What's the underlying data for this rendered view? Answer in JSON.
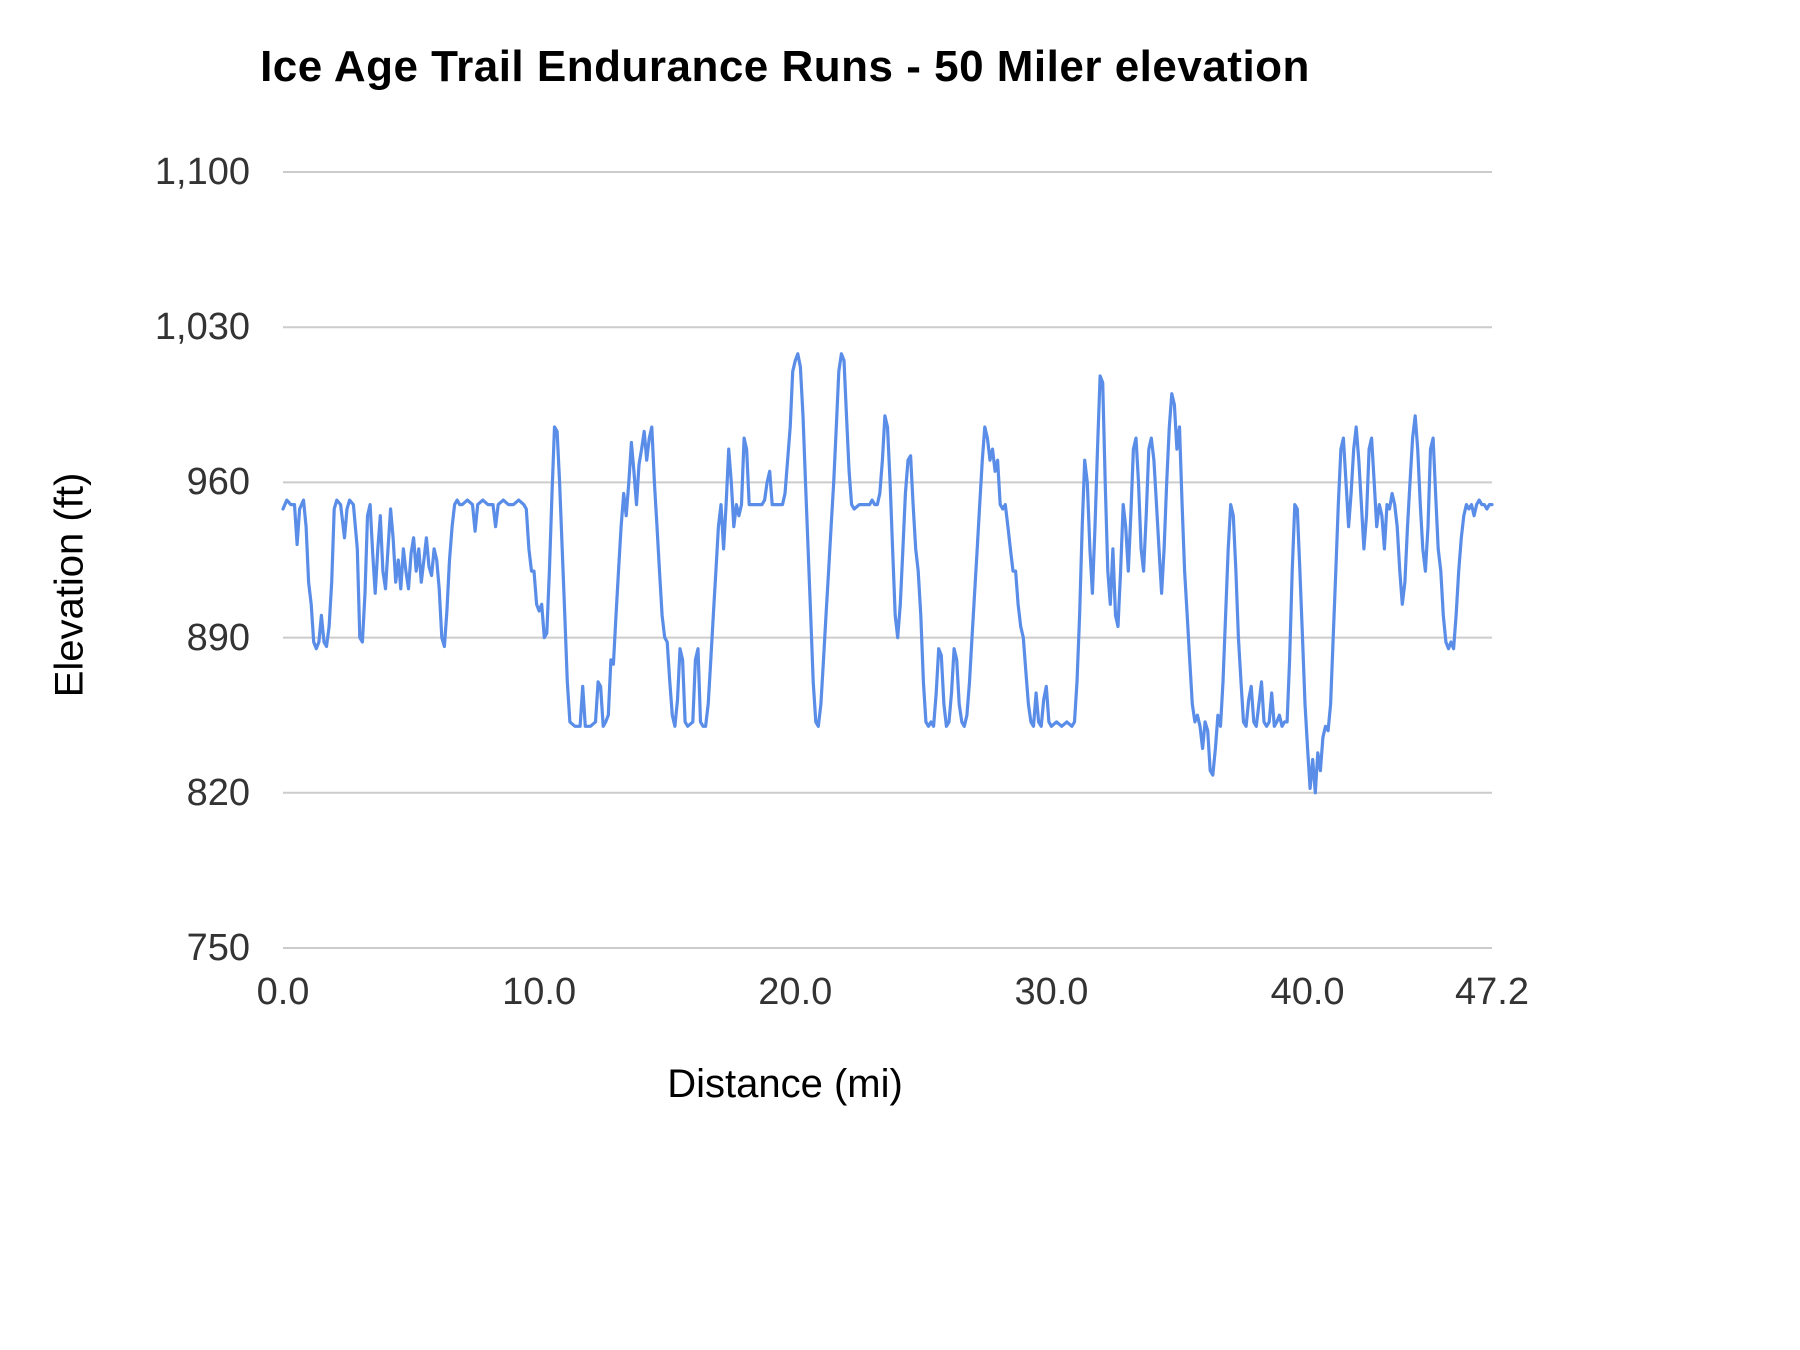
{
  "page": {
    "background": "#ffffff"
  },
  "chart_data": {
    "type": "line",
    "title": "Ice Age Trail Endurance Runs - 50 Miler elevation",
    "xlabel": "Distance (mi)",
    "ylabel": "Elevation (ft)",
    "xlim": [
      0,
      47.2
    ],
    "ylim": [
      750,
      1100
    ],
    "x_ticks": {
      "values": [
        0,
        10,
        20,
        30,
        40,
        47.2
      ],
      "labels": [
        "0.0",
        "10.0",
        "20.0",
        "30.0",
        "40.0",
        "47.2"
      ]
    },
    "y_ticks": {
      "values": [
        750,
        820,
        890,
        960,
        1030,
        1100
      ],
      "labels": [
        "750",
        "820",
        "890",
        "960",
        "1,030",
        "1,100"
      ]
    },
    "grid": "horizontal",
    "legend": "none",
    "line_color": "#5a8de8",
    "grid_color": "#cccccc",
    "text_color": "#333333",
    "series_name": "Elevation",
    "points": [
      [
        0,
        948
      ],
      [
        0.15,
        952
      ],
      [
        0.3,
        950
      ],
      [
        0.45,
        950
      ],
      [
        0.55,
        932
      ],
      [
        0.65,
        948
      ],
      [
        0.8,
        952
      ],
      [
        0.9,
        940
      ],
      [
        1.0,
        915
      ],
      [
        1.1,
        905
      ],
      [
        1.2,
        888
      ],
      [
        1.3,
        885
      ],
      [
        1.4,
        888
      ],
      [
        1.5,
        900
      ],
      [
        1.6,
        888
      ],
      [
        1.7,
        886
      ],
      [
        1.8,
        895
      ],
      [
        1.9,
        915
      ],
      [
        2.0,
        948
      ],
      [
        2.1,
        952
      ],
      [
        2.25,
        950
      ],
      [
        2.4,
        935
      ],
      [
        2.5,
        948
      ],
      [
        2.6,
        952
      ],
      [
        2.75,
        950
      ],
      [
        2.9,
        930
      ],
      [
        3.0,
        890
      ],
      [
        3.1,
        888
      ],
      [
        3.2,
        910
      ],
      [
        3.3,
        945
      ],
      [
        3.4,
        950
      ],
      [
        3.5,
        928
      ],
      [
        3.6,
        910
      ],
      [
        3.7,
        930
      ],
      [
        3.8,
        945
      ],
      [
        3.9,
        920
      ],
      [
        4.0,
        912
      ],
      [
        4.1,
        930
      ],
      [
        4.2,
        948
      ],
      [
        4.3,
        935
      ],
      [
        4.4,
        915
      ],
      [
        4.5,
        925
      ],
      [
        4.6,
        912
      ],
      [
        4.7,
        930
      ],
      [
        4.8,
        920
      ],
      [
        4.9,
        912
      ],
      [
        5.0,
        928
      ],
      [
        5.1,
        935
      ],
      [
        5.2,
        920
      ],
      [
        5.3,
        930
      ],
      [
        5.4,
        915
      ],
      [
        5.5,
        925
      ],
      [
        5.6,
        935
      ],
      [
        5.7,
        922
      ],
      [
        5.8,
        918
      ],
      [
        5.9,
        930
      ],
      [
        6.0,
        925
      ],
      [
        6.1,
        912
      ],
      [
        6.2,
        890
      ],
      [
        6.3,
        886
      ],
      [
        6.4,
        902
      ],
      [
        6.5,
        925
      ],
      [
        6.6,
        940
      ],
      [
        6.7,
        950
      ],
      [
        6.8,
        952
      ],
      [
        6.9,
        950
      ],
      [
        7.0,
        950
      ],
      [
        7.2,
        952
      ],
      [
        7.4,
        950
      ],
      [
        7.5,
        938
      ],
      [
        7.6,
        950
      ],
      [
        7.8,
        952
      ],
      [
        8.0,
        950
      ],
      [
        8.2,
        950
      ],
      [
        8.3,
        940
      ],
      [
        8.4,
        950
      ],
      [
        8.6,
        952
      ],
      [
        8.8,
        950
      ],
      [
        9.0,
        950
      ],
      [
        9.2,
        952
      ],
      [
        9.4,
        950
      ],
      [
        9.5,
        948
      ],
      [
        9.6,
        930
      ],
      [
        9.7,
        920
      ],
      [
        9.8,
        920
      ],
      [
        9.9,
        905
      ],
      [
        10.0,
        902
      ],
      [
        10.1,
        905
      ],
      [
        10.2,
        890
      ],
      [
        10.3,
        892
      ],
      [
        10.4,
        920
      ],
      [
        10.5,
        955
      ],
      [
        10.6,
        985
      ],
      [
        10.7,
        983
      ],
      [
        10.8,
        960
      ],
      [
        10.9,
        930
      ],
      [
        11.0,
        900
      ],
      [
        11.1,
        870
      ],
      [
        11.2,
        852
      ],
      [
        11.4,
        850
      ],
      [
        11.6,
        850
      ],
      [
        11.7,
        868
      ],
      [
        11.8,
        850
      ],
      [
        12.0,
        850
      ],
      [
        12.2,
        852
      ],
      [
        12.3,
        870
      ],
      [
        12.4,
        868
      ],
      [
        12.5,
        850
      ],
      [
        12.6,
        852
      ],
      [
        12.7,
        855
      ],
      [
        12.8,
        880
      ],
      [
        12.9,
        878
      ],
      [
        13.0,
        900
      ],
      [
        13.1,
        920
      ],
      [
        13.2,
        940
      ],
      [
        13.3,
        955
      ],
      [
        13.4,
        945
      ],
      [
        13.5,
        960
      ],
      [
        13.6,
        978
      ],
      [
        13.7,
        965
      ],
      [
        13.8,
        950
      ],
      [
        13.9,
        968
      ],
      [
        14.0,
        975
      ],
      [
        14.1,
        983
      ],
      [
        14.2,
        970
      ],
      [
        14.3,
        980
      ],
      [
        14.4,
        985
      ],
      [
        14.5,
        960
      ],
      [
        14.6,
        940
      ],
      [
        14.7,
        920
      ],
      [
        14.8,
        900
      ],
      [
        14.9,
        890
      ],
      [
        15.0,
        888
      ],
      [
        15.1,
        870
      ],
      [
        15.2,
        855
      ],
      [
        15.3,
        850
      ],
      [
        15.4,
        862
      ],
      [
        15.5,
        885
      ],
      [
        15.6,
        880
      ],
      [
        15.7,
        852
      ],
      [
        15.8,
        850
      ],
      [
        16.0,
        852
      ],
      [
        16.1,
        880
      ],
      [
        16.2,
        885
      ],
      [
        16.3,
        852
      ],
      [
        16.4,
        850
      ],
      [
        16.5,
        850
      ],
      [
        16.6,
        860
      ],
      [
        16.7,
        880
      ],
      [
        16.8,
        900
      ],
      [
        16.9,
        920
      ],
      [
        17.0,
        940
      ],
      [
        17.1,
        950
      ],
      [
        17.2,
        930
      ],
      [
        17.3,
        950
      ],
      [
        17.4,
        975
      ],
      [
        17.5,
        960
      ],
      [
        17.6,
        940
      ],
      [
        17.7,
        950
      ],
      [
        17.8,
        945
      ],
      [
        17.9,
        950
      ],
      [
        18.0,
        980
      ],
      [
        18.1,
        975
      ],
      [
        18.2,
        950
      ],
      [
        18.3,
        950
      ],
      [
        18.5,
        950
      ],
      [
        18.7,
        950
      ],
      [
        18.8,
        952
      ],
      [
        18.9,
        960
      ],
      [
        19.0,
        965
      ],
      [
        19.1,
        950
      ],
      [
        19.3,
        950
      ],
      [
        19.5,
        950
      ],
      [
        19.6,
        955
      ],
      [
        19.7,
        970
      ],
      [
        19.8,
        985
      ],
      [
        19.9,
        1010
      ],
      [
        20.0,
        1015
      ],
      [
        20.1,
        1018
      ],
      [
        20.2,
        1012
      ],
      [
        20.3,
        990
      ],
      [
        20.4,
        960
      ],
      [
        20.5,
        930
      ],
      [
        20.6,
        900
      ],
      [
        20.7,
        870
      ],
      [
        20.8,
        852
      ],
      [
        20.9,
        850
      ],
      [
        21.0,
        860
      ],
      [
        21.1,
        880
      ],
      [
        21.2,
        900
      ],
      [
        21.3,
        920
      ],
      [
        21.4,
        940
      ],
      [
        21.5,
        960
      ],
      [
        21.6,
        985
      ],
      [
        21.7,
        1010
      ],
      [
        21.8,
        1018
      ],
      [
        21.9,
        1015
      ],
      [
        22.0,
        990
      ],
      [
        22.1,
        965
      ],
      [
        22.2,
        950
      ],
      [
        22.3,
        948
      ],
      [
        22.5,
        950
      ],
      [
        22.7,
        950
      ],
      [
        22.9,
        950
      ],
      [
        23.0,
        952
      ],
      [
        23.1,
        950
      ],
      [
        23.2,
        950
      ],
      [
        23.3,
        955
      ],
      [
        23.4,
        970
      ],
      [
        23.5,
        990
      ],
      [
        23.6,
        985
      ],
      [
        23.7,
        960
      ],
      [
        23.8,
        930
      ],
      [
        23.9,
        900
      ],
      [
        24.0,
        890
      ],
      [
        24.1,
        905
      ],
      [
        24.2,
        930
      ],
      [
        24.3,
        955
      ],
      [
        24.4,
        970
      ],
      [
        24.5,
        972
      ],
      [
        24.6,
        950
      ],
      [
        24.7,
        930
      ],
      [
        24.8,
        920
      ],
      [
        24.9,
        900
      ],
      [
        25.0,
        870
      ],
      [
        25.1,
        852
      ],
      [
        25.2,
        850
      ],
      [
        25.3,
        852
      ],
      [
        25.4,
        850
      ],
      [
        25.5,
        865
      ],
      [
        25.6,
        885
      ],
      [
        25.7,
        882
      ],
      [
        25.8,
        860
      ],
      [
        25.9,
        850
      ],
      [
        26.0,
        852
      ],
      [
        26.1,
        865
      ],
      [
        26.2,
        885
      ],
      [
        26.3,
        880
      ],
      [
        26.4,
        860
      ],
      [
        26.5,
        852
      ],
      [
        26.6,
        850
      ],
      [
        26.7,
        855
      ],
      [
        26.8,
        870
      ],
      [
        26.9,
        890
      ],
      [
        27.0,
        910
      ],
      [
        27.1,
        930
      ],
      [
        27.2,
        950
      ],
      [
        27.3,
        970
      ],
      [
        27.4,
        985
      ],
      [
        27.5,
        980
      ],
      [
        27.6,
        970
      ],
      [
        27.7,
        975
      ],
      [
        27.8,
        965
      ],
      [
        27.9,
        970
      ],
      [
        28.0,
        950
      ],
      [
        28.1,
        948
      ],
      [
        28.2,
        950
      ],
      [
        28.3,
        940
      ],
      [
        28.4,
        930
      ],
      [
        28.5,
        920
      ],
      [
        28.6,
        920
      ],
      [
        28.7,
        905
      ],
      [
        28.8,
        895
      ],
      [
        28.9,
        890
      ],
      [
        29.0,
        875
      ],
      [
        29.1,
        860
      ],
      [
        29.2,
        852
      ],
      [
        29.3,
        850
      ],
      [
        29.4,
        865
      ],
      [
        29.5,
        852
      ],
      [
        29.6,
        850
      ],
      [
        29.7,
        862
      ],
      [
        29.8,
        868
      ],
      [
        29.9,
        852
      ],
      [
        30.0,
        850
      ],
      [
        30.2,
        852
      ],
      [
        30.4,
        850
      ],
      [
        30.6,
        852
      ],
      [
        30.8,
        850
      ],
      [
        30.9,
        852
      ],
      [
        31.0,
        870
      ],
      [
        31.1,
        900
      ],
      [
        31.2,
        940
      ],
      [
        31.3,
        970
      ],
      [
        31.4,
        960
      ],
      [
        31.5,
        930
      ],
      [
        31.6,
        910
      ],
      [
        31.7,
        940
      ],
      [
        31.8,
        975
      ],
      [
        31.9,
        1008
      ],
      [
        32.0,
        1005
      ],
      [
        32.1,
        960
      ],
      [
        32.2,
        920
      ],
      [
        32.3,
        905
      ],
      [
        32.4,
        930
      ],
      [
        32.5,
        900
      ],
      [
        32.6,
        895
      ],
      [
        32.7,
        920
      ],
      [
        32.8,
        950
      ],
      [
        32.9,
        940
      ],
      [
        33.0,
        920
      ],
      [
        33.1,
        945
      ],
      [
        33.2,
        975
      ],
      [
        33.3,
        980
      ],
      [
        33.4,
        960
      ],
      [
        33.5,
        930
      ],
      [
        33.6,
        920
      ],
      [
        33.7,
        945
      ],
      [
        33.8,
        975
      ],
      [
        33.9,
        980
      ],
      [
        34.0,
        970
      ],
      [
        34.1,
        950
      ],
      [
        34.2,
        930
      ],
      [
        34.3,
        910
      ],
      [
        34.4,
        930
      ],
      [
        34.5,
        960
      ],
      [
        34.6,
        985
      ],
      [
        34.7,
        1000
      ],
      [
        34.8,
        995
      ],
      [
        34.9,
        975
      ],
      [
        35.0,
        985
      ],
      [
        35.1,
        950
      ],
      [
        35.2,
        920
      ],
      [
        35.3,
        900
      ],
      [
        35.4,
        880
      ],
      [
        35.5,
        860
      ],
      [
        35.6,
        852
      ],
      [
        35.7,
        855
      ],
      [
        35.8,
        850
      ],
      [
        35.9,
        840
      ],
      [
        36.0,
        852
      ],
      [
        36.1,
        848
      ],
      [
        36.2,
        830
      ],
      [
        36.3,
        828
      ],
      [
        36.4,
        840
      ],
      [
        36.5,
        855
      ],
      [
        36.6,
        850
      ],
      [
        36.7,
        870
      ],
      [
        36.8,
        900
      ],
      [
        36.9,
        930
      ],
      [
        37.0,
        950
      ],
      [
        37.1,
        945
      ],
      [
        37.2,
        920
      ],
      [
        37.3,
        890
      ],
      [
        37.4,
        870
      ],
      [
        37.5,
        852
      ],
      [
        37.6,
        850
      ],
      [
        37.7,
        862
      ],
      [
        37.8,
        868
      ],
      [
        37.9,
        852
      ],
      [
        38.0,
        850
      ],
      [
        38.1,
        860
      ],
      [
        38.2,
        870
      ],
      [
        38.3,
        852
      ],
      [
        38.4,
        850
      ],
      [
        38.5,
        852
      ],
      [
        38.6,
        865
      ],
      [
        38.7,
        850
      ],
      [
        38.8,
        852
      ],
      [
        38.9,
        855
      ],
      [
        39.0,
        850
      ],
      [
        39.1,
        852
      ],
      [
        39.2,
        852
      ],
      [
        39.3,
        880
      ],
      [
        39.4,
        920
      ],
      [
        39.5,
        950
      ],
      [
        39.6,
        948
      ],
      [
        39.7,
        920
      ],
      [
        39.8,
        890
      ],
      [
        39.9,
        860
      ],
      [
        40.0,
        840
      ],
      [
        40.1,
        822
      ],
      [
        40.2,
        835
      ],
      [
        40.3,
        820
      ],
      [
        40.4,
        838
      ],
      [
        40.5,
        830
      ],
      [
        40.6,
        845
      ],
      [
        40.7,
        850
      ],
      [
        40.8,
        848
      ],
      [
        40.9,
        860
      ],
      [
        41.0,
        890
      ],
      [
        41.1,
        920
      ],
      [
        41.2,
        950
      ],
      [
        41.3,
        975
      ],
      [
        41.4,
        980
      ],
      [
        41.5,
        960
      ],
      [
        41.6,
        940
      ],
      [
        41.7,
        955
      ],
      [
        41.8,
        975
      ],
      [
        41.9,
        985
      ],
      [
        42.0,
        970
      ],
      [
        42.1,
        950
      ],
      [
        42.2,
        930
      ],
      [
        42.3,
        945
      ],
      [
        42.4,
        975
      ],
      [
        42.5,
        980
      ],
      [
        42.6,
        960
      ],
      [
        42.7,
        940
      ],
      [
        42.8,
        950
      ],
      [
        42.9,
        945
      ],
      [
        43.0,
        930
      ],
      [
        43.1,
        950
      ],
      [
        43.2,
        948
      ],
      [
        43.3,
        955
      ],
      [
        43.4,
        950
      ],
      [
        43.5,
        940
      ],
      [
        43.6,
        920
      ],
      [
        43.7,
        905
      ],
      [
        43.8,
        915
      ],
      [
        43.9,
        940
      ],
      [
        44.0,
        960
      ],
      [
        44.1,
        980
      ],
      [
        44.2,
        990
      ],
      [
        44.3,
        975
      ],
      [
        44.4,
        950
      ],
      [
        44.5,
        930
      ],
      [
        44.6,
        920
      ],
      [
        44.7,
        940
      ],
      [
        44.8,
        975
      ],
      [
        44.9,
        980
      ],
      [
        45.0,
        955
      ],
      [
        45.1,
        930
      ],
      [
        45.2,
        920
      ],
      [
        45.3,
        900
      ],
      [
        45.4,
        888
      ],
      [
        45.5,
        885
      ],
      [
        45.6,
        888
      ],
      [
        45.7,
        885
      ],
      [
        45.8,
        900
      ],
      [
        45.9,
        920
      ],
      [
        46.0,
        935
      ],
      [
        46.1,
        945
      ],
      [
        46.2,
        950
      ],
      [
        46.3,
        948
      ],
      [
        46.4,
        950
      ],
      [
        46.5,
        945
      ],
      [
        46.6,
        950
      ],
      [
        46.7,
        952
      ],
      [
        46.8,
        950
      ],
      [
        46.9,
        950
      ],
      [
        47.0,
        948
      ],
      [
        47.1,
        950
      ],
      [
        47.2,
        950
      ]
    ]
  }
}
